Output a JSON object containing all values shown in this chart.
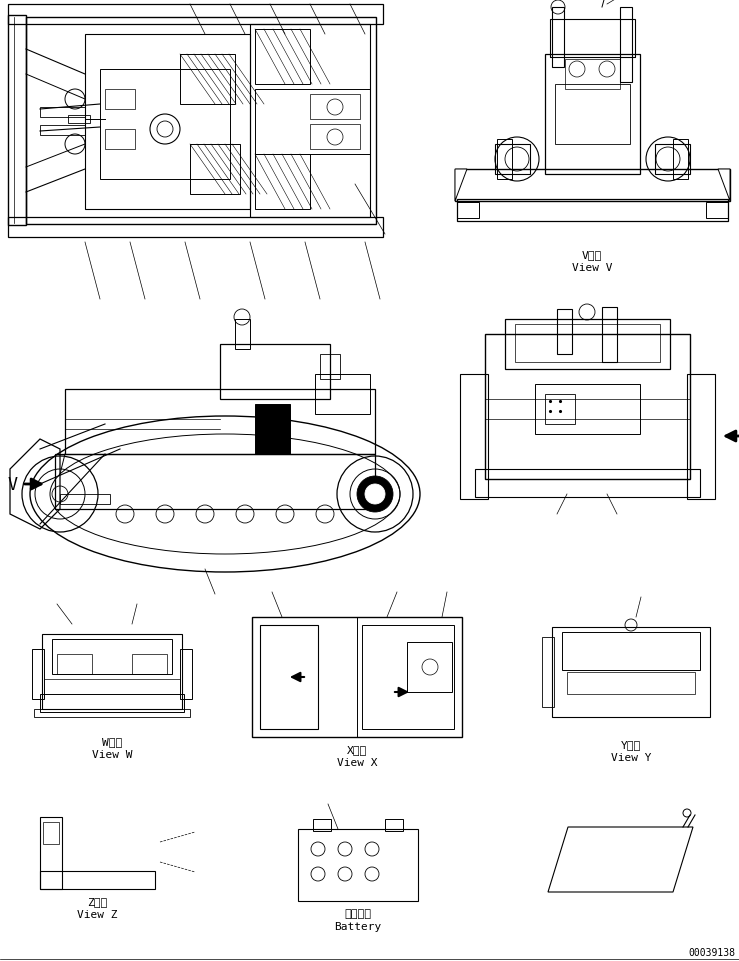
{
  "background_color": "#ffffff",
  "line_color": "#000000",
  "fig_width": 7.39,
  "fig_height": 9.62,
  "dpi": 100,
  "part_number": "00039138",
  "view_labels": {
    "view_v_jp": "V　視",
    "view_v_en": "View V",
    "view_w_left_jp": "W　視",
    "view_w_left_en": "View W",
    "view_x_jp": "X　視",
    "view_x_en": "View X",
    "view_y_jp": "Y　視",
    "view_y_en": "View Y",
    "view_z_jp": "Z　視",
    "view_z_en": "View Z",
    "battery_jp": "バッテリ",
    "battery_en": "Battery"
  }
}
